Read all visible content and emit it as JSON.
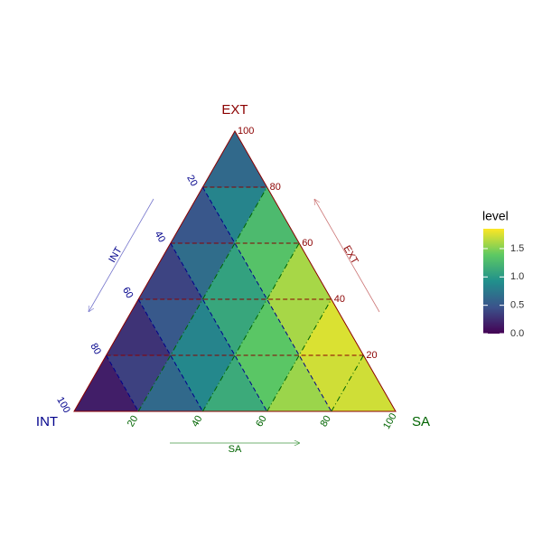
{
  "chart_data": {
    "type": "ternary",
    "axes": {
      "ext": {
        "title": "EXT",
        "color": "#8b0000",
        "ticks": [
          20,
          40,
          60,
          80,
          100
        ]
      },
      "int": {
        "title": "INT",
        "color": "#00008b",
        "ticks": [
          20,
          40,
          60,
          80,
          100
        ]
      },
      "sa": {
        "title": "SA",
        "color": "#006400",
        "ticks": [
          20,
          40,
          60,
          80,
          100
        ]
      }
    },
    "sa": [
      0,
      20,
      40,
      60,
      80,
      100,
      0,
      20,
      40,
      60,
      80,
      0,
      20,
      40,
      60,
      0,
      20,
      40,
      0,
      20,
      0
    ],
    "ext": [
      0,
      0,
      0,
      0,
      0,
      0,
      20,
      20,
      20,
      20,
      20,
      40,
      40,
      40,
      40,
      60,
      60,
      60,
      80,
      80,
      100
    ],
    "level": [
      0.0,
      0.4,
      0.9,
      1.4,
      1.7,
      1.6,
      0.1,
      0.6,
      1.1,
      1.6,
      1.85,
      0.15,
      0.8,
      1.4,
      1.8,
      0.2,
      1.0,
      1.6,
      0.3,
      1.2,
      0.4
    ],
    "legend": {
      "title": "level",
      "lim": [
        0,
        1.85
      ],
      "ticks": [
        {
          "value": 0,
          "label": "0.0"
        },
        {
          "value": 0.5,
          "label": "0.5"
        },
        {
          "value": 1,
          "label": "1.0"
        },
        {
          "value": 1.5,
          "label": "1.5"
        }
      ],
      "colors": [
        "#440154",
        "#3b528b",
        "#21908c",
        "#5dc963",
        "#fde725"
      ]
    }
  }
}
